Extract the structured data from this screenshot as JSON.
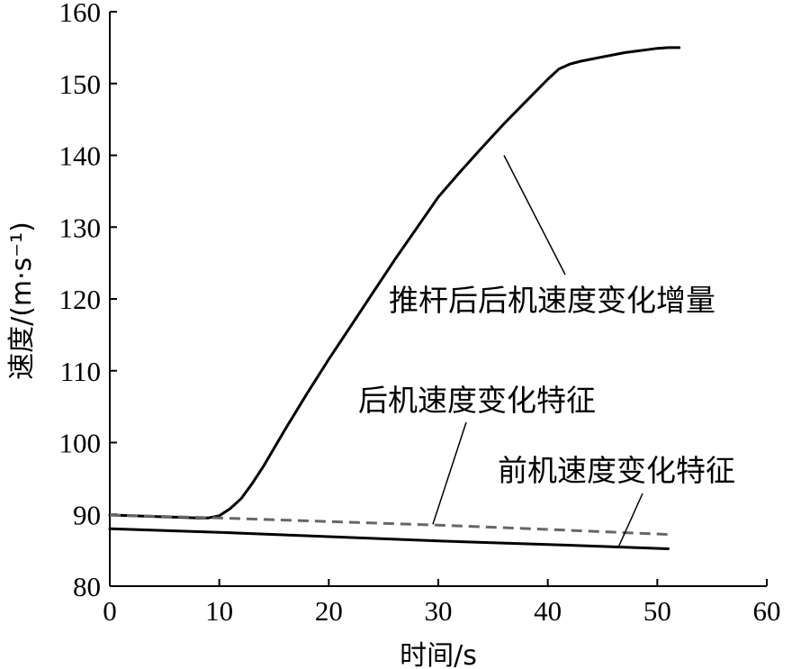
{
  "chart_data": {
    "type": "line",
    "xlabel": "时间/s",
    "ylabel": "速度/(m·s⁻¹)",
    "xlim": [
      0,
      60
    ],
    "ylim": [
      80,
      160
    ],
    "xticks": [
      0,
      10,
      20,
      30,
      40,
      50,
      60
    ],
    "yticks": [
      80,
      90,
      100,
      110,
      120,
      130,
      140,
      150,
      160
    ],
    "grid": false,
    "legend": "none",
    "series": [
      {
        "name": "推杆后后机速度变化增量",
        "style": "solid",
        "color": "#000000",
        "x": [
          0,
          2,
          4,
          6,
          8,
          9,
          10,
          11,
          12,
          13,
          14,
          15,
          16,
          18,
          20,
          22,
          24,
          26,
          28,
          30,
          32,
          34,
          36,
          38,
          40,
          41,
          42,
          43,
          44,
          45,
          46,
          47,
          48,
          49,
          50,
          51,
          52
        ],
        "y": [
          89.9,
          89.8,
          89.7,
          89.6,
          89.5,
          89.5,
          89.8,
          90.8,
          92.2,
          94.3,
          96.6,
          99.2,
          101.8,
          106.8,
          111.6,
          116.2,
          120.8,
          125.4,
          129.8,
          134.2,
          137.7,
          141.1,
          144.4,
          147.5,
          150.6,
          152.0,
          152.7,
          153.1,
          153.4,
          153.7,
          154.0,
          154.3,
          154.5,
          154.7,
          154.9,
          155.0,
          155.0
        ]
      },
      {
        "name": "后机速度变化特征",
        "style": "dashed",
        "color": "#666666",
        "x": [
          0,
          10,
          20,
          30,
          40,
          51
        ],
        "y": [
          89.9,
          89.5,
          89.0,
          88.5,
          87.9,
          87.2
        ]
      },
      {
        "name": "前机速度变化特征",
        "style": "solid",
        "color": "#000000",
        "x": [
          0,
          10,
          20,
          30,
          40,
          51
        ],
        "y": [
          88.0,
          87.5,
          86.9,
          86.3,
          85.8,
          85.2
        ]
      }
    ],
    "annotations": [
      {
        "text": "推杆后后机速度变化增量",
        "series": 0,
        "point": [
          36,
          140
        ]
      },
      {
        "text": "后机速度变化特征",
        "series": 1,
        "point": [
          29.5,
          88.6
        ]
      },
      {
        "text": "前机速度变化特征",
        "series": 2,
        "point": [
          46.5,
          85.6
        ]
      }
    ]
  }
}
